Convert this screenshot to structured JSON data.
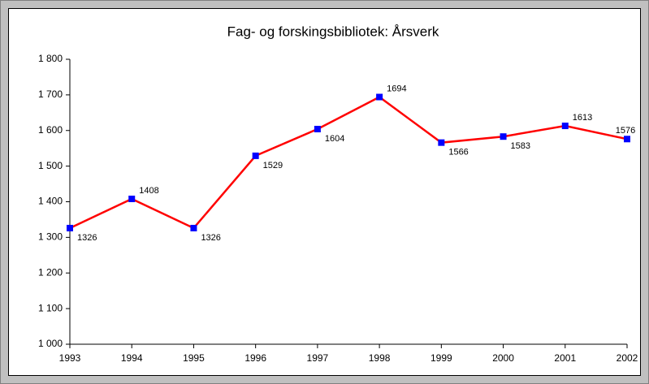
{
  "chart_data": {
    "type": "line",
    "title": "Fag- og forskingsbibliotek: Årsverk",
    "categories": [
      "1993",
      "1994",
      "1995",
      "1996",
      "1997",
      "1998",
      "1999",
      "2000",
      "2001",
      "2002"
    ],
    "series": [
      {
        "name": "Årsverk",
        "color": "#ff0000",
        "marker_color": "#0000ff",
        "values": [
          1326,
          1408,
          1326,
          1529,
          1604,
          1694,
          1566,
          1583,
          1613,
          1576
        ]
      }
    ],
    "ylim": [
      1000,
      1800
    ],
    "yticks": [
      {
        "value": 1000,
        "label": "1 000"
      },
      {
        "value": 1100,
        "label": "1 100"
      },
      {
        "value": 1200,
        "label": "1 200"
      },
      {
        "value": 1300,
        "label": "1 300"
      },
      {
        "value": 1400,
        "label": "1 400"
      },
      {
        "value": 1500,
        "label": "1 500"
      },
      {
        "value": 1600,
        "label": "1 600"
      },
      {
        "value": 1700,
        "label": "1 700"
      },
      {
        "value": 1800,
        "label": "1 800"
      }
    ],
    "grid": false
  }
}
